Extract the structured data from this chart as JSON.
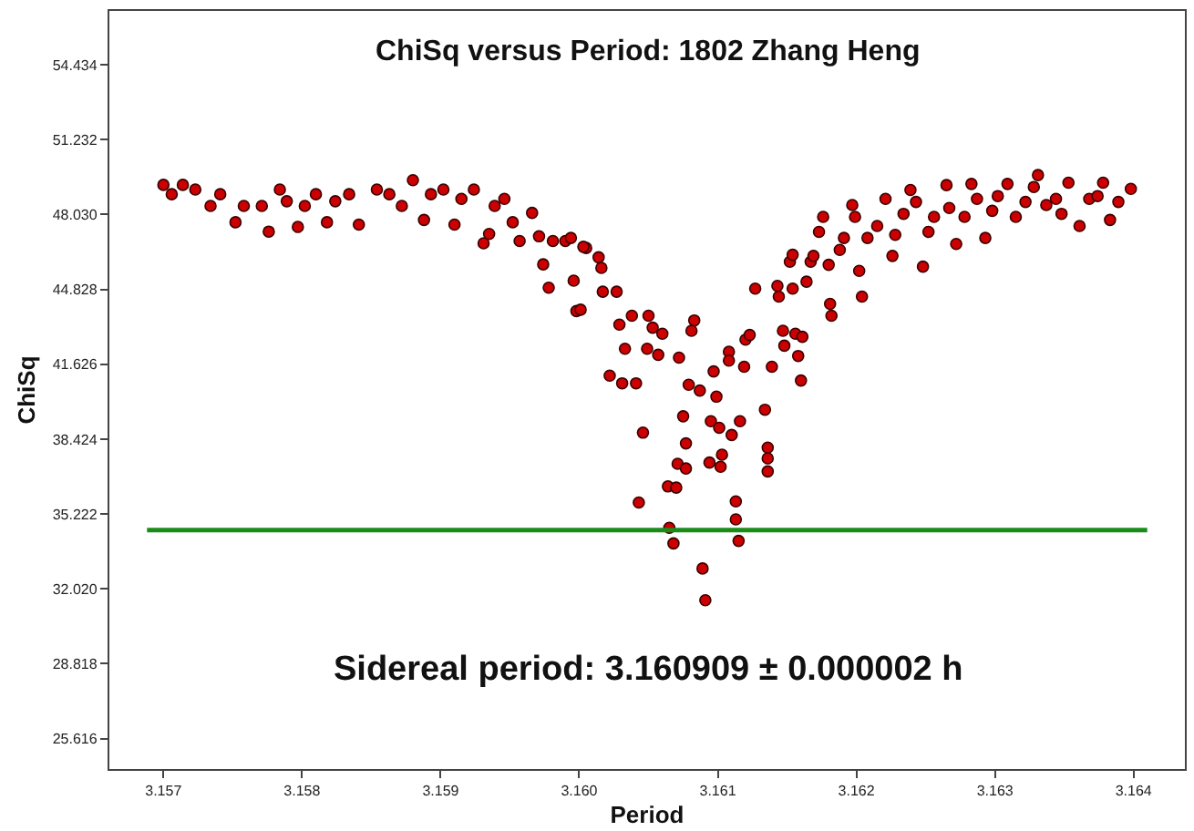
{
  "chart_data": {
    "type": "scatter",
    "title": "ChiSq versus Period: 1802 Zhang Heng",
    "xlabel": "Period",
    "ylabel": "ChiSq",
    "annotations": [
      "Sidereal period: 3.160909 ± 0.000002 h"
    ],
    "marker": "circle",
    "grid": false,
    "xlim": [
      3.15661,
      3.16437
    ],
    "xticks": [
      {
        "value": 3.157,
        "label": "3.157"
      },
      {
        "value": 3.158,
        "label": "3.158"
      },
      {
        "value": 3.159,
        "label": "3.159"
      },
      {
        "value": 3.16,
        "label": "3.160"
      },
      {
        "value": 3.161,
        "label": "3.161"
      },
      {
        "value": 3.162,
        "label": "3.162"
      },
      {
        "value": 3.163,
        "label": "3.163"
      },
      {
        "value": 3.164,
        "label": "3.164"
      }
    ],
    "ylim": [
      24.31,
      56.74
    ],
    "yticks": [
      {
        "value": 25.616,
        "label": "25.616"
      },
      {
        "value": 28.818,
        "label": "28.818"
      },
      {
        "value": 32.02,
        "label": "32.020"
      },
      {
        "value": 35.222,
        "label": "35.222"
      },
      {
        "value": 38.424,
        "label": "38.424"
      },
      {
        "value": 41.626,
        "label": "41.626"
      },
      {
        "value": 44.828,
        "label": "44.828"
      },
      {
        "value": 48.03,
        "label": "48.030"
      },
      {
        "value": 51.232,
        "label": "51.232"
      },
      {
        "value": 54.434,
        "label": "54.434"
      }
    ],
    "ref_lines": [
      {
        "axis": "y",
        "value": 34.53,
        "color": "#1a8c1a"
      }
    ],
    "series": [
      {
        "color": "#cc0000",
        "x": [
          3.157,
          3.15706,
          3.15714,
          3.15723,
          3.15734,
          3.15741,
          3.15752,
          3.15758,
          3.15771,
          3.15776,
          3.15784,
          3.15789,
          3.15797,
          3.15802,
          3.1581,
          3.15818,
          3.15824,
          3.15834,
          3.15841,
          3.15854,
          3.15863,
          3.15872,
          3.1588,
          3.15888,
          3.15893,
          3.15902,
          3.1591,
          3.15915,
          3.15924,
          3.15931,
          3.15935,
          3.15939,
          3.15946,
          3.15952,
          3.15957,
          3.15966,
          3.15971,
          3.15974,
          3.15978,
          3.15981,
          3.1599,
          3.15996,
          3.15998,
          3.16005,
          3.16014,
          3.15994,
          3.16003,
          3.16016,
          3.16001,
          3.16017,
          3.16027,
          3.16029,
          3.16038,
          3.16033,
          3.16022,
          3.16031,
          3.16041,
          3.1605,
          3.16053,
          3.1606,
          3.16049,
          3.16057,
          3.16072,
          3.16046,
          3.16043,
          3.16083,
          3.16081,
          3.16079,
          3.16087,
          3.16099,
          3.16097,
          3.16075,
          3.16077,
          3.16071,
          3.16077,
          3.16064,
          3.1607,
          3.16065,
          3.16068,
          3.16089,
          3.16091,
          3.16095,
          3.16101,
          3.1611,
          3.16116,
          3.16103,
          3.16094,
          3.16102,
          3.16113,
          3.16113,
          3.16115,
          3.16108,
          3.16108,
          3.1612,
          3.16123,
          3.16119,
          3.16134,
          3.16136,
          3.16136,
          3.16136,
          3.16139,
          3.16147,
          3.16156,
          3.16161,
          3.16148,
          3.16158,
          3.1616,
          3.16127,
          3.16144,
          3.16143,
          3.16154,
          3.16152,
          3.16154,
          3.16164,
          3.16167,
          3.16169,
          3.16173,
          3.16176,
          3.1618,
          3.16181,
          3.16182,
          3.16188,
          3.16191,
          3.16197,
          3.16199,
          3.16202,
          3.16204,
          3.16208,
          3.16215,
          3.16221,
          3.16226,
          3.16228,
          3.16234,
          3.16239,
          3.16243,
          3.16248,
          3.16252,
          3.16256,
          3.16265,
          3.16267,
          3.16272,
          3.16278,
          3.16283,
          3.16287,
          3.16293,
          3.16298,
          3.16302,
          3.16309,
          3.16315,
          3.16322,
          3.16328,
          3.16331,
          3.16337,
          3.16344,
          3.16348,
          3.16353,
          3.16361,
          3.16368,
          3.16374,
          3.16378,
          3.16383,
          3.16389,
          3.16398
        ],
        "values": [
          49.3,
          48.9,
          49.3,
          49.1,
          48.4,
          48.9,
          47.7,
          48.4,
          48.4,
          47.3,
          49.1,
          48.6,
          47.5,
          48.4,
          48.9,
          47.7,
          48.6,
          48.9,
          47.6,
          49.1,
          48.9,
          48.4,
          49.5,
          47.8,
          48.9,
          49.1,
          47.6,
          48.7,
          49.1,
          46.8,
          47.2,
          48.4,
          48.7,
          47.7,
          46.9,
          48.1,
          47.1,
          45.9,
          44.9,
          46.9,
          46.9,
          45.2,
          43.9,
          46.6,
          46.2,
          47.03,
          46.65,
          45.75,
          43.96,
          44.73,
          44.73,
          43.32,
          43.7,
          42.29,
          41.14,
          40.81,
          40.81,
          43.7,
          43.19,
          42.93,
          42.29,
          42.03,
          41.91,
          38.7,
          35.71,
          43.5,
          43.06,
          40.75,
          40.5,
          40.24,
          41.32,
          39.4,
          38.24,
          37.37,
          37.17,
          36.4,
          36.35,
          34.63,
          33.96,
          32.89,
          31.53,
          39.19,
          38.91,
          38.6,
          39.19,
          37.76,
          37.42,
          37.24,
          35.76,
          34.99,
          34.07,
          42.16,
          41.78,
          42.68,
          42.88,
          41.52,
          39.68,
          38.06,
          37.6,
          37.04,
          41.52,
          43.06,
          42.93,
          42.8,
          42.42,
          41.98,
          40.93,
          44.86,
          44.52,
          44.98,
          44.86,
          46.01,
          46.31,
          45.16,
          46.01,
          46.26,
          47.29,
          47.93,
          45.88,
          44.21,
          43.7,
          46.52,
          47.03,
          48.44,
          47.93,
          45.62,
          44.52,
          47.03,
          47.54,
          48.7,
          46.26,
          47.16,
          48.06,
          49.08,
          48.57,
          45.8,
          47.29,
          47.93,
          49.29,
          48.31,
          46.77,
          47.93,
          49.34,
          48.7,
          47.03,
          48.19,
          48.82,
          49.34,
          47.93,
          48.57,
          49.21,
          49.72,
          48.44,
          48.7,
          48.06,
          49.39,
          47.54,
          48.7,
          48.82,
          49.39,
          47.8,
          48.57,
          49.13
        ]
      }
    ]
  }
}
